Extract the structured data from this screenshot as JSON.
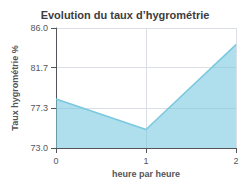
{
  "chart_data": {
    "type": "line",
    "title": "Evolution du taux d’hygrométrie",
    "xlabel": "heure par heure",
    "ylabel": "Taux hygrométrie %",
    "x": [
      0,
      1,
      2
    ],
    "values": [
      78.3,
      75.0,
      84.2
    ],
    "color": "#7ac8df",
    "xlim": [
      0,
      2
    ],
    "xticks": [
      0,
      1,
      2
    ],
    "ylim": [
      73.0,
      86.0
    ],
    "yticks": [
      {
        "value": 73.0,
        "label": "73.0"
      },
      77.3,
      81.7,
      {
        "value": 86.0,
        "label": "86.0"
      }
    ],
    "grid": true
  }
}
